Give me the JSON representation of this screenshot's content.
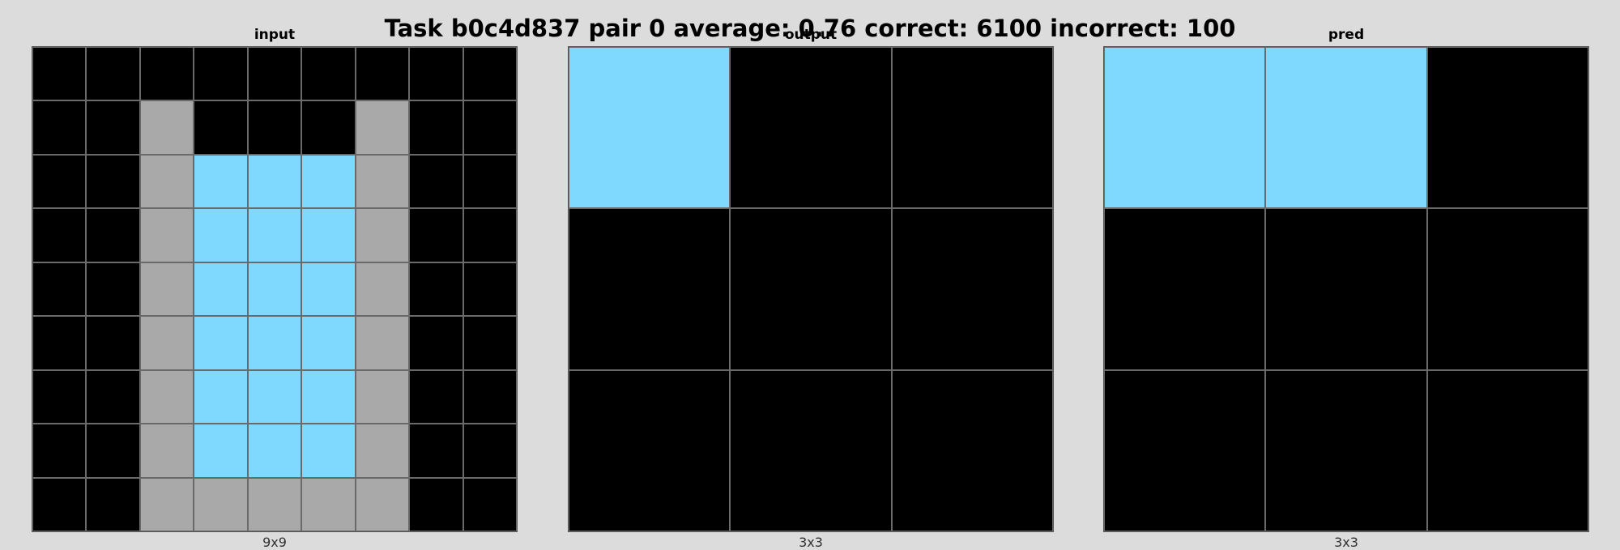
{
  "title": "Task b0c4d837 pair 0 average: 0.76 correct: 6100 incorrect: 100",
  "colors": {
    "0": "#000000",
    "5": "#a9a9a9",
    "8": "#7fd9ff"
  },
  "panels": [
    {
      "label": "input",
      "dims": "9x9",
      "grid": [
        [
          0,
          0,
          0,
          0,
          0,
          0,
          0,
          0,
          0
        ],
        [
          0,
          0,
          5,
          0,
          0,
          0,
          5,
          0,
          0
        ],
        [
          0,
          0,
          5,
          8,
          8,
          8,
          5,
          0,
          0
        ],
        [
          0,
          0,
          5,
          8,
          8,
          8,
          5,
          0,
          0
        ],
        [
          0,
          0,
          5,
          8,
          8,
          8,
          5,
          0,
          0
        ],
        [
          0,
          0,
          5,
          8,
          8,
          8,
          5,
          0,
          0
        ],
        [
          0,
          0,
          5,
          8,
          8,
          8,
          5,
          0,
          0
        ],
        [
          0,
          0,
          5,
          8,
          8,
          8,
          5,
          0,
          0
        ],
        [
          0,
          0,
          5,
          5,
          5,
          5,
          5,
          0,
          0
        ]
      ]
    },
    {
      "label": "output",
      "dims": "3x3",
      "grid": [
        [
          8,
          0,
          0
        ],
        [
          0,
          0,
          0
        ],
        [
          0,
          0,
          0
        ]
      ]
    },
    {
      "label": "pred",
      "dims": "3x3",
      "grid": [
        [
          8,
          8,
          0
        ],
        [
          0,
          0,
          0
        ],
        [
          0,
          0,
          0
        ]
      ]
    }
  ]
}
